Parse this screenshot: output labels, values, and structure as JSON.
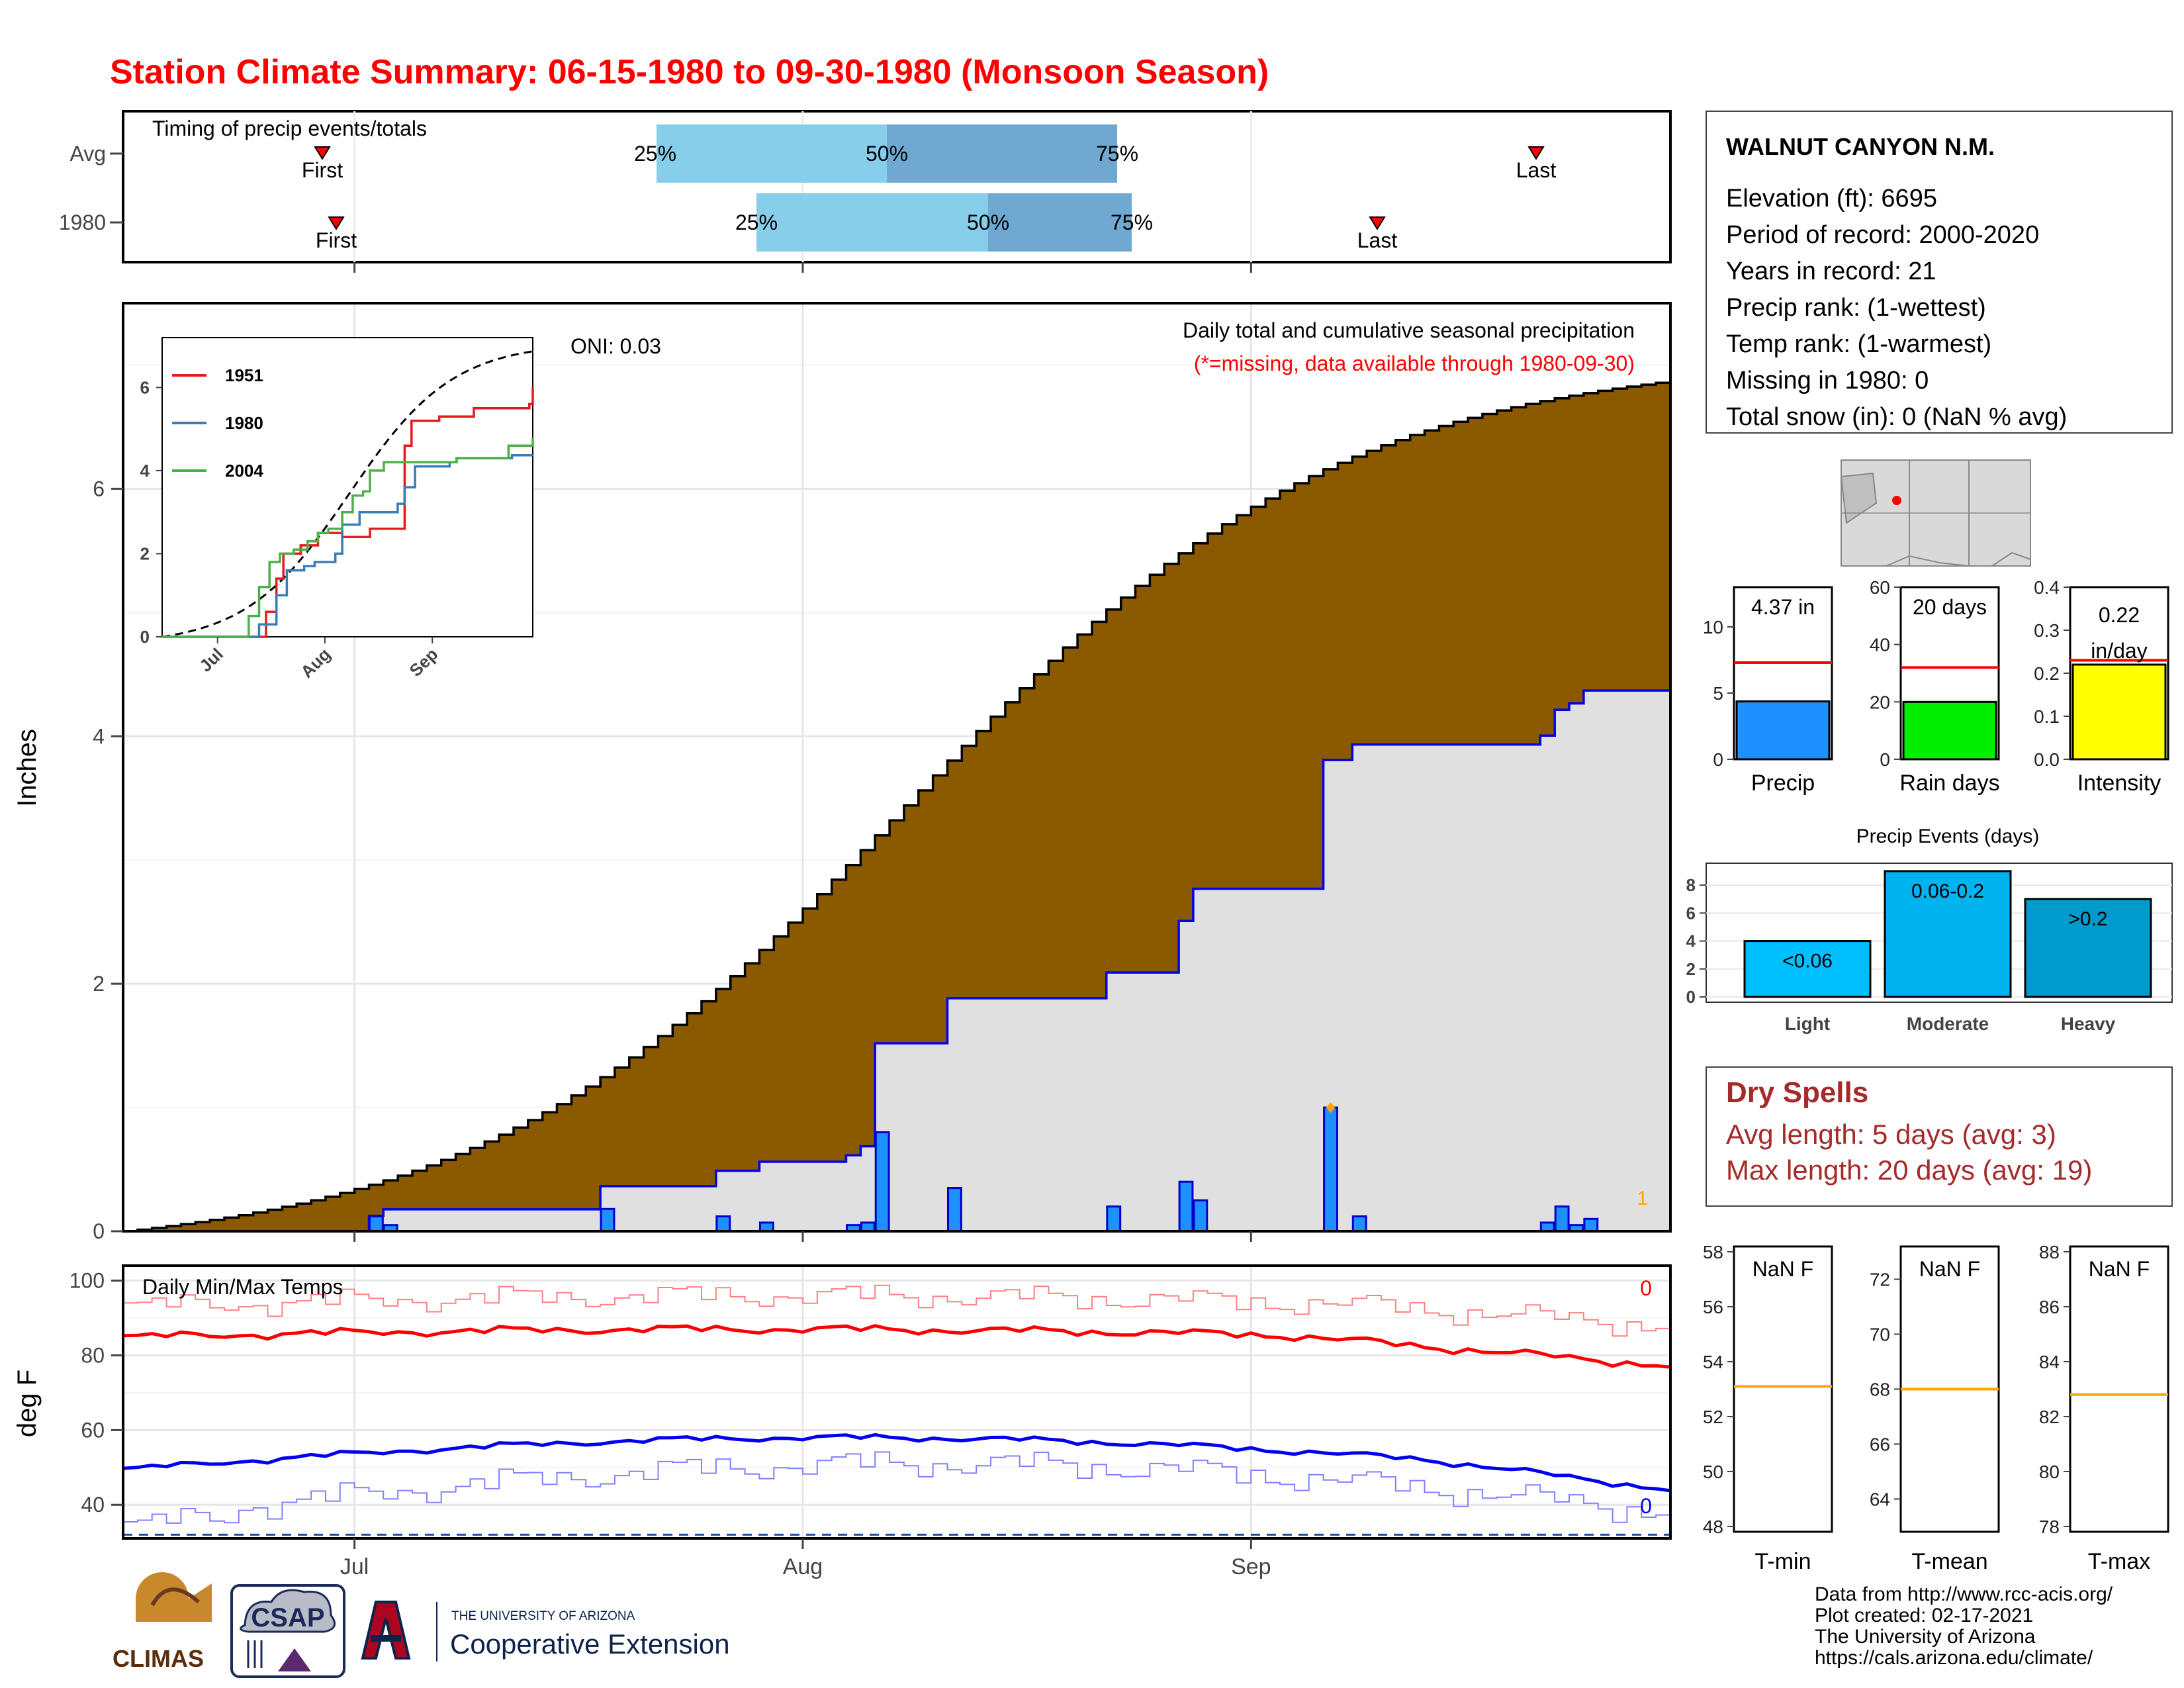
{
  "title": "Station Climate Summary: 06-15-1980 to 09-30-1980 (Monsoon Season)",
  "timing": {
    "label": "Timing of precip events/totals",
    "rows": [
      "Avg",
      "1980"
    ],
    "first_label": "First",
    "last_label": "Last",
    "pct_labels": [
      "25%",
      "50%",
      "75%"
    ]
  },
  "x_ticks": [
    "Jul",
    "Aug",
    "Sep"
  ],
  "main": {
    "caption": "Daily total and cumulative seasonal precipitation",
    "missing_note": "(*=missing, data available through 1980-09-30)",
    "oni": "ONI: 0.03",
    "ylabel": "Inches",
    "missing_count": "1"
  },
  "inset": {
    "legend": [
      "1951",
      "1980",
      "2004"
    ],
    "colors": [
      "#e41a1c",
      "#377eb8",
      "#4daf4a"
    ],
    "x_ticks": [
      "Jul",
      "Aug",
      "Sep"
    ]
  },
  "temps": {
    "label": "Daily Min/Max Temps",
    "ylabel": "deg F",
    "max_count": "0",
    "min_count": "0"
  },
  "station": {
    "name": "WALNUT CANYON N.M.",
    "lines": [
      "Elevation (ft): 6695",
      "Period of record: 2000-2020",
      "Years in record: 21",
      "Precip rank:  (1-wettest)",
      "Temp rank:  (1-warmest)",
      "Missing in 1980: 0",
      "Total snow (in): 0 (NaN % avg)"
    ]
  },
  "summary_bars": [
    {
      "label": "Precip",
      "value_text": "4.37 in"
    },
    {
      "label": "Rain days",
      "value_text": "20 days"
    },
    {
      "label": "Intensity",
      "value_text_1": "0.22",
      "value_text_2": "in/day"
    }
  ],
  "events": {
    "title": "Precip Events (days)",
    "categories": [
      "Light",
      "Moderate",
      "Heavy"
    ],
    "bar_labels": [
      "<0.06",
      "0.06-0.2",
      ">0.2"
    ]
  },
  "dry_spells": {
    "title": "Dry Spells",
    "avg": "Avg length: 5 days (avg: 3)",
    "max": "Max length: 20 days (avg: 19)"
  },
  "temp_boxes": [
    {
      "label": "T-min",
      "value_text": "NaN F"
    },
    {
      "label": "T-mean",
      "value_text": "NaN F"
    },
    {
      "label": "T-max",
      "value_text": "NaN F"
    }
  ],
  "credits": [
    "Data from http://www.rcc-acis.org/",
    "Plot created: 02-17-2021",
    "The University of Arizona",
    "https://cals.arizona.edu/climate/"
  ],
  "logos": {
    "climas": "CLIMAS",
    "csap": "CSAP",
    "ua_line1": "THE UNIVERSITY OF ARIZONA",
    "ua_line2": "Cooperative Extension"
  },
  "chart_data": [
    {
      "type": "area",
      "name": "main-precip",
      "x_domain": [
        "1980-06-15",
        "1980-09-30"
      ],
      "ylim": [
        0,
        7.5
      ],
      "y_ticks": [
        0,
        2,
        4,
        6
      ],
      "avg_cum_end": 6.87,
      "daily_precip": [
        {
          "day": 17,
          "value": 0.12
        },
        {
          "day": 18,
          "value": 0.05
        },
        {
          "day": 33,
          "value": 0.18
        },
        {
          "day": 41,
          "value": 0.12
        },
        {
          "day": 44,
          "value": 0.07
        },
        {
          "day": 50,
          "value": 0.05
        },
        {
          "day": 51,
          "value": 0.07
        },
        {
          "day": 52,
          "value": 0.8
        },
        {
          "day": 57,
          "value": 0.35
        },
        {
          "day": 68,
          "value": 0.2
        },
        {
          "day": 73,
          "value": 0.4
        },
        {
          "day": 74,
          "value": 0.25
        },
        {
          "day": 83,
          "value": 1.0
        },
        {
          "day": 85,
          "value": 0.12
        },
        {
          "day": 98,
          "value": 0.07
        },
        {
          "day": 99,
          "value": 0.2
        },
        {
          "day": 100,
          "value": 0.05
        },
        {
          "day": 101,
          "value": 0.1
        }
      ],
      "cum_1980_end": 4.37
    },
    {
      "type": "line",
      "name": "inset-cumulative",
      "ylim": [
        0,
        7.2
      ],
      "y_ticks": [
        0,
        2,
        4,
        6
      ]
    },
    {
      "type": "line",
      "name": "daily-temps",
      "ylim": [
        31,
        104
      ],
      "y_ticks": [
        40,
        60,
        80,
        100
      ]
    },
    {
      "type": "bar",
      "name": "summary",
      "panels": [
        {
          "label": "Precip",
          "value": 4.37,
          "avg": 7.3,
          "ylim": [
            0,
            13
          ],
          "y_ticks": [
            0,
            5,
            10
          ],
          "color": "#1e90ff"
        },
        {
          "label": "Rain days",
          "value": 20,
          "avg": 32,
          "ylim": [
            0,
            60
          ],
          "y_ticks": [
            0,
            20,
            40,
            60
          ],
          "color": "#00ee00"
        },
        {
          "label": "Intensity",
          "value": 0.22,
          "avg": 0.23,
          "ylim": [
            0,
            0.4
          ],
          "y_ticks": [
            0.0,
            0.1,
            0.2,
            0.3,
            0.4
          ],
          "color": "#ffff00"
        }
      ]
    },
    {
      "type": "bar",
      "name": "precip-events",
      "categories": [
        "Light",
        "Moderate",
        "Heavy"
      ],
      "values": [
        4,
        9,
        7
      ],
      "ylim": [
        0,
        9
      ],
      "y_ticks": [
        0,
        2,
        4,
        6,
        8
      ],
      "colors": [
        "#00bfff",
        "#00b2ee",
        "#009acd"
      ]
    },
    {
      "type": "bar",
      "name": "temp-departures",
      "panels": [
        {
          "label": "T-min",
          "avg": 53.1,
          "ylim": [
            48,
            58
          ],
          "y_ticks": [
            48,
            50,
            52,
            54,
            56,
            58
          ]
        },
        {
          "label": "T-mean",
          "avg": 68,
          "ylim": [
            63,
            73
          ],
          "y_ticks": [
            64,
            66,
            68,
            70,
            72
          ]
        },
        {
          "label": "T-max",
          "avg": 82.8,
          "ylim": [
            78,
            88
          ],
          "y_ticks": [
            78,
            80,
            82,
            84,
            86,
            88
          ]
        }
      ]
    }
  ]
}
